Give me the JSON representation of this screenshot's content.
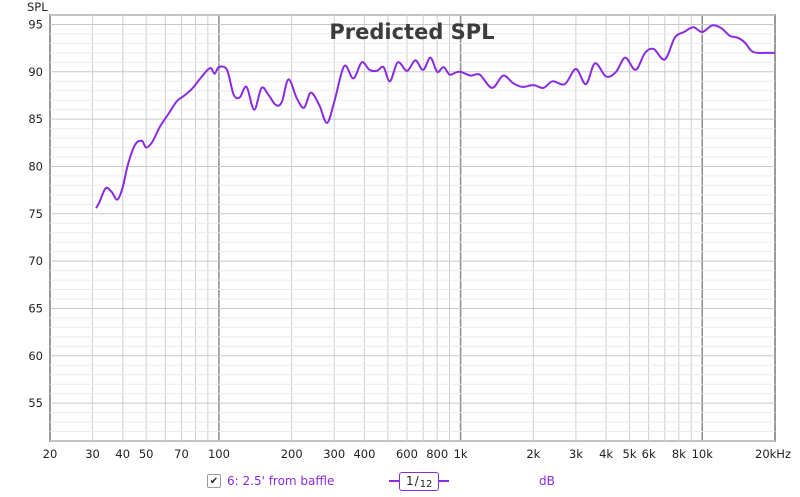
{
  "chart_data": {
    "type": "line",
    "title": "Predicted SPL",
    "ylabel": "SPL",
    "xunit_label": "Hz",
    "xscale": "log",
    "xlim": [
      20,
      20000
    ],
    "ylim": [
      51,
      96
    ],
    "grid": true,
    "x_ticks": [
      {
        "value": 20,
        "label": "20"
      },
      {
        "value": 30,
        "label": "30"
      },
      {
        "value": 40,
        "label": "40"
      },
      {
        "value": 50,
        "label": "50"
      },
      {
        "value": 70,
        "label": "70"
      },
      {
        "value": 100,
        "label": "100"
      },
      {
        "value": 200,
        "label": "200"
      },
      {
        "value": 300,
        "label": "300"
      },
      {
        "value": 400,
        "label": "400"
      },
      {
        "value": 600,
        "label": "600"
      },
      {
        "value": 800,
        "label": "800"
      },
      {
        "value": 1000,
        "label": "1k"
      },
      {
        "value": 2000,
        "label": "2k"
      },
      {
        "value": 3000,
        "label": "3k"
      },
      {
        "value": 4000,
        "label": "4k"
      },
      {
        "value": 5000,
        "label": "5k"
      },
      {
        "value": 6000,
        "label": "6k"
      },
      {
        "value": 8000,
        "label": "8k"
      },
      {
        "value": 10000,
        "label": "10k"
      },
      {
        "value": 20000,
        "label": "20kHz"
      }
    ],
    "y_ticks": [
      55,
      60,
      65,
      70,
      75,
      80,
      85,
      90,
      95
    ],
    "series": [
      {
        "name": "6: 2.5' from baffle",
        "color": "#8a2be2",
        "x": [
          31,
          32,
          34,
          36,
          38,
          40,
          42,
          45,
          48,
          50,
          53,
          57,
          62,
          67,
          72,
          78,
          85,
          92,
          96,
          100,
          108,
          115,
          122,
          130,
          140,
          150,
          160,
          172,
          182,
          194,
          210,
          225,
          240,
          260,
          280,
          300,
          330,
          360,
          390,
          420,
          450,
          480,
          510,
          550,
          600,
          650,
          700,
          750,
          800,
          850,
          900,
          950,
          1000,
          1100,
          1200,
          1350,
          1500,
          1650,
          1800,
          2000,
          2200,
          2400,
          2700,
          3000,
          3300,
          3600,
          4000,
          4400,
          4800,
          5300,
          5800,
          6300,
          7000,
          7700,
          8400,
          9200,
          10000,
          11000,
          12000,
          13000,
          14000,
          15000,
          16000,
          17000,
          18000,
          19000,
          20000
        ],
        "y": [
          75.6,
          76.2,
          77.7,
          77.3,
          76.5,
          77.8,
          80.2,
          82.3,
          82.7,
          82.0,
          82.6,
          84.2,
          85.6,
          86.9,
          87.5,
          88.3,
          89.5,
          90.4,
          89.8,
          90.5,
          90.2,
          87.6,
          87.3,
          88.4,
          86.0,
          88.3,
          87.6,
          86.5,
          86.8,
          89.2,
          87.2,
          86.2,
          87.8,
          86.5,
          84.6,
          86.8,
          90.6,
          89.3,
          91.0,
          90.2,
          90.1,
          90.5,
          89.0,
          91.0,
          90.1,
          91.2,
          90.2,
          91.5,
          90.0,
          90.5,
          89.7,
          89.9,
          90.0,
          89.6,
          89.7,
          88.3,
          89.6,
          88.8,
          88.4,
          88.6,
          88.3,
          89.0,
          88.7,
          90.3,
          88.7,
          90.9,
          89.5,
          90.0,
          91.5,
          90.2,
          92.0,
          92.4,
          91.3,
          93.6,
          94.2,
          94.7,
          94.2,
          94.9,
          94.6,
          93.8,
          93.6,
          93.1,
          92.2,
          92.0,
          92.0,
          92.0,
          92.0
        ]
      }
    ],
    "legend": {
      "series_label": "6: 2.5' from baffle",
      "checked": true,
      "smoothing_num": "1",
      "smoothing_den": "12",
      "unit": "dB",
      "check_glyph": "✔"
    }
  }
}
